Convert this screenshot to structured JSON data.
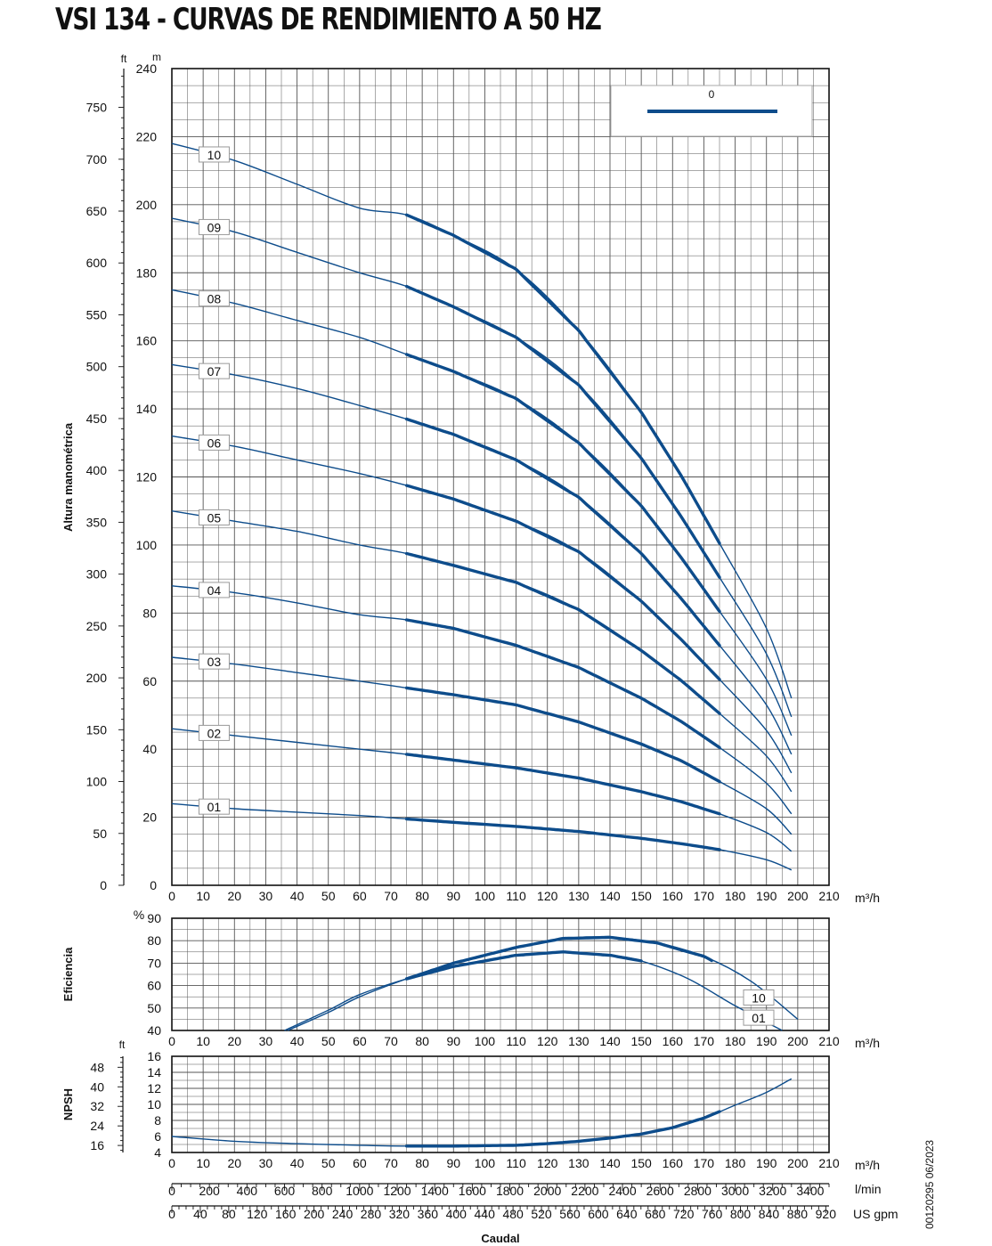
{
  "title": "VSI 134 - CURVAS DE RENDIMIENTO A 50 HZ",
  "footer_code": "00120295 06/2023",
  "colors": {
    "curve": "#0d4c8b",
    "grid": "#555555",
    "frame": "#111111",
    "label_border": "#999999"
  },
  "chart_data": [
    {
      "id": "head",
      "type": "line",
      "ylabel": "Altura manométrica",
      "xlabel": "m³/h",
      "unit_primary": "m",
      "unit_secondary": "ft",
      "xlim": [
        0,
        210
      ],
      "ylim": [
        0,
        240
      ],
      "ylim_ft": [
        0,
        787
      ],
      "x_ticks": [
        0,
        10,
        20,
        30,
        40,
        50,
        60,
        70,
        80,
        90,
        100,
        110,
        120,
        130,
        140,
        150,
        160,
        170,
        180,
        190,
        200,
        210
      ],
      "y_ticks_m": [
        0,
        20,
        40,
        60,
        80,
        100,
        120,
        140,
        160,
        180,
        200,
        220,
        240
      ],
      "y_ticks_ft": [
        0,
        50,
        100,
        150,
        200,
        250,
        300,
        350,
        400,
        450,
        500,
        550,
        600,
        650,
        700,
        750
      ],
      "legend": {
        "label": "0",
        "position": "top-right"
      },
      "operating_range": [
        75,
        175
      ],
      "series": [
        {
          "name": "01",
          "x": [
            0,
            20,
            40,
            60,
            75,
            90,
            110,
            130,
            150,
            163,
            175,
            190,
            198
          ],
          "y": [
            24,
            22.5,
            21.5,
            20.5,
            19.5,
            18.5,
            17.3,
            15.8,
            13.8,
            12.2,
            10.5,
            7.5,
            4.5
          ]
        },
        {
          "name": "02",
          "x": [
            0,
            20,
            40,
            60,
            75,
            90,
            110,
            130,
            150,
            163,
            175,
            190,
            198
          ],
          "y": [
            46,
            44,
            42,
            40,
            38.5,
            36.8,
            34.5,
            31.5,
            27.5,
            24.5,
            21,
            15.5,
            10
          ]
        },
        {
          "name": "03",
          "x": [
            0,
            20,
            40,
            60,
            75,
            90,
            110,
            130,
            150,
            163,
            175,
            190,
            198
          ],
          "y": [
            67,
            65,
            62.5,
            60,
            58,
            56,
            53,
            48,
            41.5,
            36.5,
            30.5,
            22.5,
            15
          ]
        },
        {
          "name": "04",
          "x": [
            0,
            20,
            40,
            60,
            75,
            90,
            110,
            130,
            150,
            163,
            175,
            190,
            198
          ],
          "y": [
            88,
            86,
            83,
            79.5,
            78,
            75.5,
            70.5,
            64,
            55,
            48,
            40.5,
            30,
            21
          ]
        },
        {
          "name": "05",
          "x": [
            0,
            20,
            40,
            60,
            75,
            90,
            110,
            130,
            150,
            163,
            175,
            190,
            198
          ],
          "y": [
            110,
            107,
            104,
            100,
            97.5,
            94,
            89,
            81,
            69,
            60,
            50.5,
            38,
            27.5
          ]
        },
        {
          "name": "06",
          "x": [
            0,
            20,
            40,
            60,
            75,
            90,
            110,
            130,
            150,
            163,
            175,
            190,
            198
          ],
          "y": [
            132,
            129,
            125,
            121,
            117.5,
            113.5,
            107,
            98,
            83.5,
            72,
            60.5,
            45.5,
            33
          ]
        },
        {
          "name": "07",
          "x": [
            0,
            20,
            40,
            60,
            75,
            90,
            110,
            130,
            150,
            163,
            175,
            190,
            198
          ],
          "y": [
            153,
            150,
            146,
            141,
            137,
            132.5,
            125,
            114,
            97.5,
            84,
            70.5,
            53,
            38.5
          ]
        },
        {
          "name": "08",
          "x": [
            0,
            20,
            40,
            60,
            75,
            90,
            110,
            130,
            150,
            163,
            175,
            190,
            198
          ],
          "y": [
            175,
            171,
            166,
            161,
            156,
            151,
            143,
            130,
            111.5,
            96,
            80.5,
            60.5,
            44
          ]
        },
        {
          "name": "09",
          "x": [
            0,
            20,
            40,
            60,
            75,
            90,
            110,
            130,
            150,
            163,
            175,
            190,
            198
          ],
          "y": [
            196,
            192,
            186,
            180,
            176,
            170,
            161,
            147,
            125.5,
            108,
            90.5,
            68,
            49.5
          ]
        },
        {
          "name": "10",
          "x": [
            0,
            20,
            40,
            60,
            75,
            90,
            110,
            130,
            150,
            163,
            175,
            190,
            198
          ],
          "y": [
            218,
            213,
            206,
            199,
            197,
            191,
            181,
            163,
            139,
            120,
            100.5,
            75.5,
            55
          ]
        }
      ]
    },
    {
      "id": "efficiency",
      "type": "line",
      "ylabel": "Eficiencia",
      "xlabel": "m³/h",
      "unit_primary": "%",
      "xlim": [
        0,
        210
      ],
      "ylim": [
        40,
        90
      ],
      "x_ticks": [
        0,
        10,
        20,
        30,
        40,
        50,
        60,
        70,
        80,
        90,
        100,
        110,
        120,
        130,
        140,
        150,
        160,
        170,
        180,
        190,
        200,
        210
      ],
      "y_ticks": [
        40,
        50,
        60,
        70,
        80,
        90
      ],
      "series": [
        {
          "name": "10",
          "x": [
            37,
            50,
            60,
            75,
            90,
            110,
            125,
            140,
            155,
            170,
            185,
            200
          ],
          "y": [
            40,
            48,
            55,
            63,
            70,
            77,
            81,
            81.5,
            79,
            73,
            62,
            45
          ]
        },
        {
          "name": "01",
          "x": [
            36,
            50,
            60,
            75,
            90,
            110,
            125,
            140,
            150,
            165,
            180,
            195
          ],
          "y": [
            40,
            49,
            56,
            63,
            68.5,
            73.5,
            75,
            73.5,
            71,
            63,
            51,
            40
          ]
        }
      ]
    },
    {
      "id": "npsh",
      "type": "line",
      "ylabel": "NPSH",
      "xlabel": "m³/h",
      "unit_secondary": "ft",
      "xlim": [
        0,
        210
      ],
      "ylim": [
        4,
        16
      ],
      "x_ticks": [
        0,
        10,
        20,
        30,
        40,
        50,
        60,
        70,
        80,
        90,
        100,
        110,
        120,
        130,
        140,
        150,
        160,
        170,
        180,
        190,
        200,
        210
      ],
      "y_ticks": [
        4,
        6,
        8,
        10,
        12,
        14,
        16
      ],
      "y_ticks_ft": [
        16,
        24,
        32,
        40,
        48
      ],
      "series": [
        {
          "name": "NPSH",
          "x": [
            0,
            20,
            40,
            60,
            75,
            90,
            110,
            120,
            130,
            140,
            150,
            160,
            170,
            180,
            190,
            198
          ],
          "y": [
            6,
            5.4,
            5.1,
            4.9,
            4.8,
            4.8,
            4.9,
            5.1,
            5.4,
            5.8,
            6.3,
            7.1,
            8.3,
            9.9,
            11.5,
            13.2
          ]
        }
      ]
    }
  ],
  "flow_axes": {
    "lmin_label": "l/min",
    "lmin_ticks": [
      0,
      200,
      400,
      600,
      800,
      1000,
      1200,
      1400,
      1600,
      1800,
      2000,
      2200,
      2400,
      2600,
      2800,
      3000,
      3200,
      3400
    ],
    "usgpm_label": "US gpm",
    "usgpm_ticks": [
      0,
      40,
      80,
      120,
      160,
      200,
      240,
      280,
      320,
      360,
      400,
      440,
      480,
      520,
      560,
      600,
      640,
      680,
      720,
      760,
      800,
      840,
      880,
      920
    ],
    "caudal_label": "Caudal"
  }
}
